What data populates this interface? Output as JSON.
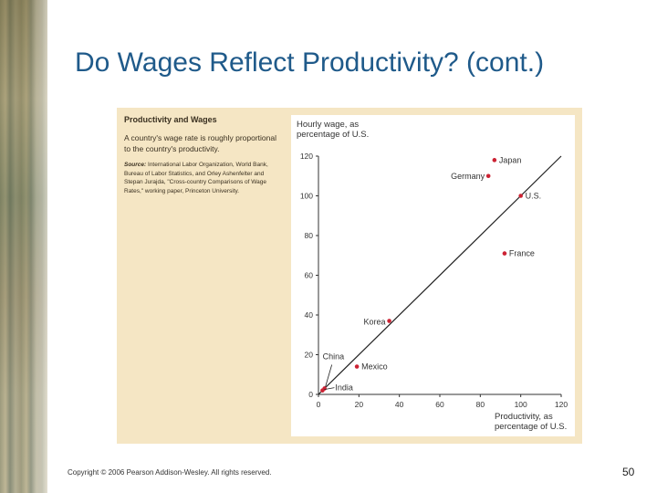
{
  "slide": {
    "title": "Do Wages Reflect Productivity? (cont.)",
    "copyright": "Copyright © 2006 Pearson Addison-Wesley. All rights reserved.",
    "page_number": "50"
  },
  "caption": {
    "title": "Productivity and Wages",
    "description": "A country's wage rate is roughly proportional to the country's productivity.",
    "source_label": "Source:",
    "source_text": "International Labor Organization, World Bank, Bureau of Labor Statistics, and Orley Ashenfelter and Stepan Jurajda, \"Cross-country Comparisons of Wage Rates,\" working paper, Princeton University."
  },
  "colors": {
    "point": "#cc2233",
    "axis": "#333333",
    "line": "#222222",
    "text": "#333333"
  },
  "chart_data": {
    "type": "scatter",
    "ylabel": "Hourly wage, as percentage of U.S.",
    "xlabel": "Productivity, as percentage of U.S.",
    "xlim": [
      0,
      120
    ],
    "ylim": [
      0,
      120
    ],
    "x_ticks": [
      0,
      20,
      40,
      60,
      80,
      100,
      120
    ],
    "y_ticks": [
      0,
      20,
      40,
      60,
      80,
      100,
      120
    ],
    "grid": false,
    "reference_line": {
      "from": [
        0,
        0
      ],
      "to": [
        120,
        120
      ]
    },
    "points": [
      {
        "label": "Japan",
        "x": 87,
        "y": 118
      },
      {
        "label": "Germany",
        "x": 84,
        "y": 110
      },
      {
        "label": "U.S.",
        "x": 100,
        "y": 100
      },
      {
        "label": "France",
        "x": 92,
        "y": 71
      },
      {
        "label": "Korea",
        "x": 35,
        "y": 37
      },
      {
        "label": "Mexico",
        "x": 19,
        "y": 14
      },
      {
        "label": "China",
        "x": 3,
        "y": 3
      },
      {
        "label": "India",
        "x": 2,
        "y": 2
      }
    ]
  }
}
